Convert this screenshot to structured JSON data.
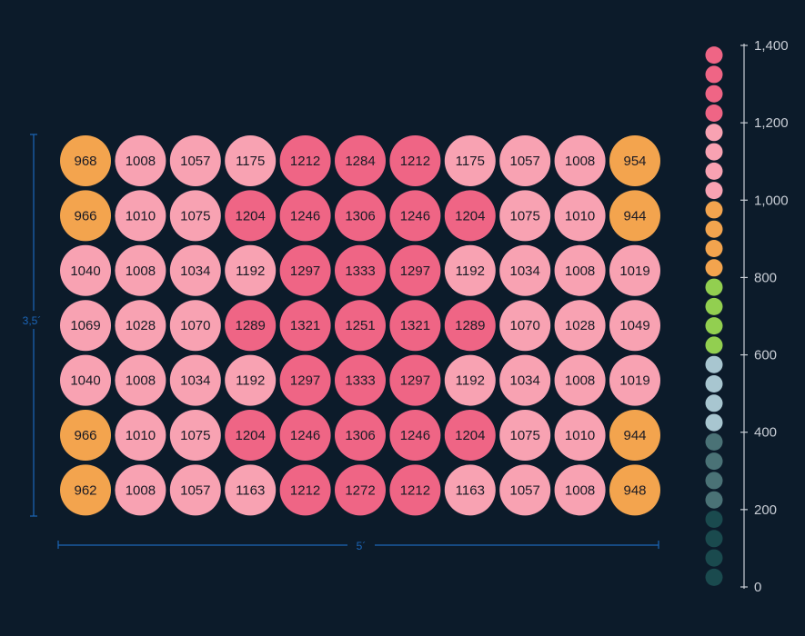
{
  "chart_data": {
    "type": "heatmap",
    "title": "",
    "dimensions": {
      "height_label": "3,5´",
      "width_label": "5´"
    },
    "rows": [
      [
        968,
        1008,
        1057,
        1175,
        1212,
        1284,
        1212,
        1175,
        1057,
        1008,
        954
      ],
      [
        966,
        1010,
        1075,
        1204,
        1246,
        1306,
        1246,
        1204,
        1075,
        1010,
        944
      ],
      [
        1040,
        1008,
        1034,
        1192,
        1297,
        1333,
        1297,
        1192,
        1034,
        1008,
        1019
      ],
      [
        1069,
        1028,
        1070,
        1289,
        1321,
        1251,
        1321,
        1289,
        1070,
        1028,
        1049
      ],
      [
        1040,
        1008,
        1034,
        1192,
        1297,
        1333,
        1297,
        1192,
        1034,
        1008,
        1019
      ],
      [
        966,
        1010,
        1075,
        1204,
        1246,
        1306,
        1246,
        1204,
        1075,
        1010,
        944
      ],
      [
        962,
        1008,
        1057,
        1163,
        1212,
        1272,
        1212,
        1163,
        1057,
        1008,
        948
      ]
    ],
    "scale": {
      "min": 0,
      "max": 1400,
      "ticks": [
        0,
        200,
        400,
        600,
        800,
        1000,
        1200,
        1400
      ],
      "tick_labels": [
        "0",
        "200",
        "400",
        "600",
        "800",
        "1,000",
        "1,200",
        "1,400"
      ],
      "bands": [
        {
          "from": 0,
          "to": 200,
          "color": "#1a4a4e"
        },
        {
          "from": 200,
          "to": 400,
          "color": "#4a7276"
        },
        {
          "from": 400,
          "to": 600,
          "color": "#a8c6d0"
        },
        {
          "from": 600,
          "to": 800,
          "color": "#92cf50"
        },
        {
          "from": 800,
          "to": 1000,
          "color": "#f3a44e"
        },
        {
          "from": 1000,
          "to": 1200,
          "color": "#f8a2b2"
        },
        {
          "from": 1200,
          "to": 1400,
          "color": "#ef6585"
        }
      ]
    },
    "colors": {
      "background": "#0c1b2a",
      "cell_text": "#1a1a24",
      "tick_text": "#c9ced6",
      "dimension": "#1c66b8"
    }
  }
}
